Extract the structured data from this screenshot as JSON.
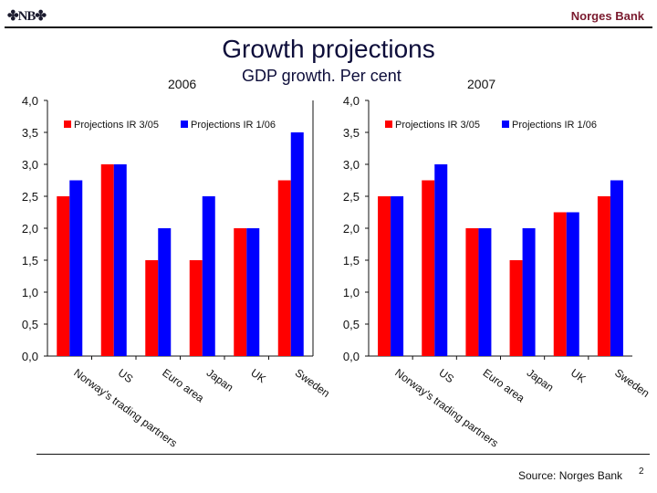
{
  "header": {
    "logo_text": "NB",
    "brand": "Norges Bank"
  },
  "title": "Growth projections",
  "subtitle": "GDP growth. Per cent",
  "footer": {
    "source": "Source: Norges Bank",
    "page": "2"
  },
  "colors": {
    "series1": "#ff0000",
    "series2": "#0000ff",
    "brand": "#7a1a2e"
  },
  "chart_data": [
    {
      "type": "bar",
      "title": "2006",
      "categories": [
        "Norway's trading partners",
        "US",
        "Euro area",
        "Japan",
        "UK",
        "Sweden"
      ],
      "series": [
        {
          "name": "Projections IR 3/05",
          "values": [
            2.5,
            3.0,
            1.5,
            1.5,
            2.0,
            2.75
          ]
        },
        {
          "name": "Projections IR 1/06",
          "values": [
            2.75,
            3.0,
            2.0,
            2.5,
            2.0,
            3.5
          ]
        }
      ],
      "ylim": [
        0,
        4
      ],
      "yticks": [
        "0,0",
        "0,5",
        "1,0",
        "1,5",
        "2,0",
        "2,5",
        "3,0",
        "3,5",
        "4,0"
      ],
      "legend": "top",
      "grid": false
    },
    {
      "type": "bar",
      "title": "2007",
      "categories": [
        "Norway's trading partners",
        "US",
        "Euro area",
        "Japan",
        "UK",
        "Sweden"
      ],
      "series": [
        {
          "name": "Projections IR 3/05",
          "values": [
            2.5,
            2.75,
            2.0,
            1.5,
            2.25,
            2.5
          ]
        },
        {
          "name": "Projections IR 1/06",
          "values": [
            2.5,
            3.0,
            2.0,
            2.0,
            2.25,
            2.75
          ]
        }
      ],
      "ylim": [
        0,
        4
      ],
      "yticks": [
        "0,0",
        "0,5",
        "1,0",
        "1,5",
        "2,0",
        "2,5",
        "3,0",
        "3,5",
        "4,0"
      ],
      "legend": "top",
      "grid": false
    }
  ]
}
